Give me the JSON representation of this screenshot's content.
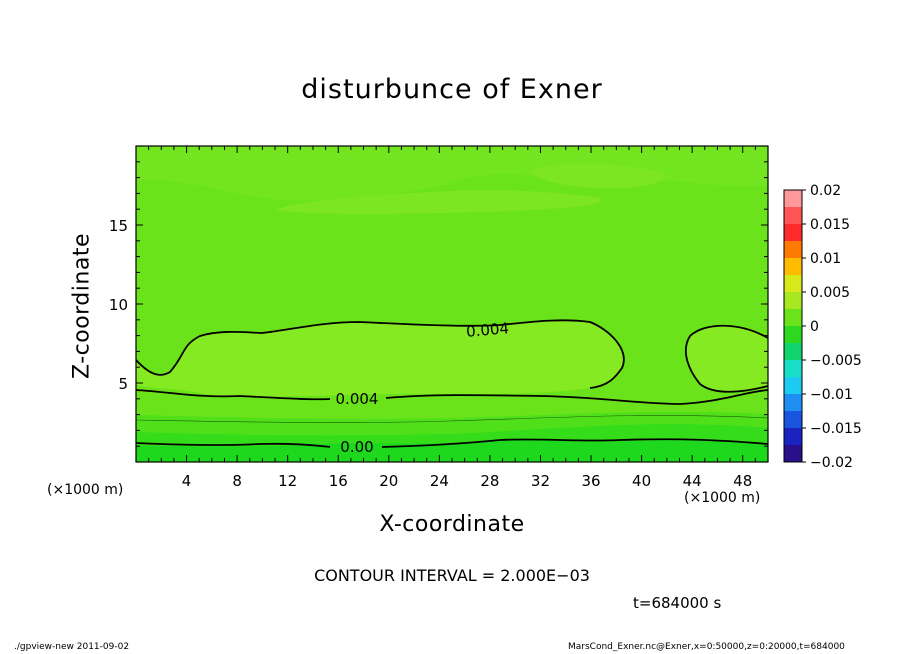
{
  "chart_data": {
    "type": "contour",
    "title": "disturbunce of Exner",
    "xlabel": "X-coordinate",
    "ylabel": "Z-coordinate",
    "x_unit": "(×1000 m)",
    "y_unit": "(×1000 m)",
    "xlim": [
      0,
      50
    ],
    "ylim": [
      0,
      20
    ],
    "xticks": [
      4,
      8,
      12,
      16,
      20,
      24,
      28,
      32,
      36,
      40,
      44,
      48
    ],
    "yticks": [
      5,
      10,
      15
    ],
    "colorbar": {
      "ticks": [
        "0.02",
        "0.015",
        "0.01",
        "0.005",
        "0",
        "−0.005",
        "−0.01",
        "−0.015",
        "−0.02"
      ],
      "range": [
        -0.02,
        0.02
      ],
      "interval": 0.0025
    },
    "contour_labels": [
      "0.004",
      "0.004",
      "0.00"
    ],
    "contour_interval_text": "CONTOUR INTERVAL = 2.000E−03",
    "time_text": "t=684000 s"
  },
  "footer": {
    "left": "./gpview-new   2011-09-02",
    "right": "MarsCond_Exner.nc@Exner,x=0:50000,z=0:20000,t=684000"
  }
}
